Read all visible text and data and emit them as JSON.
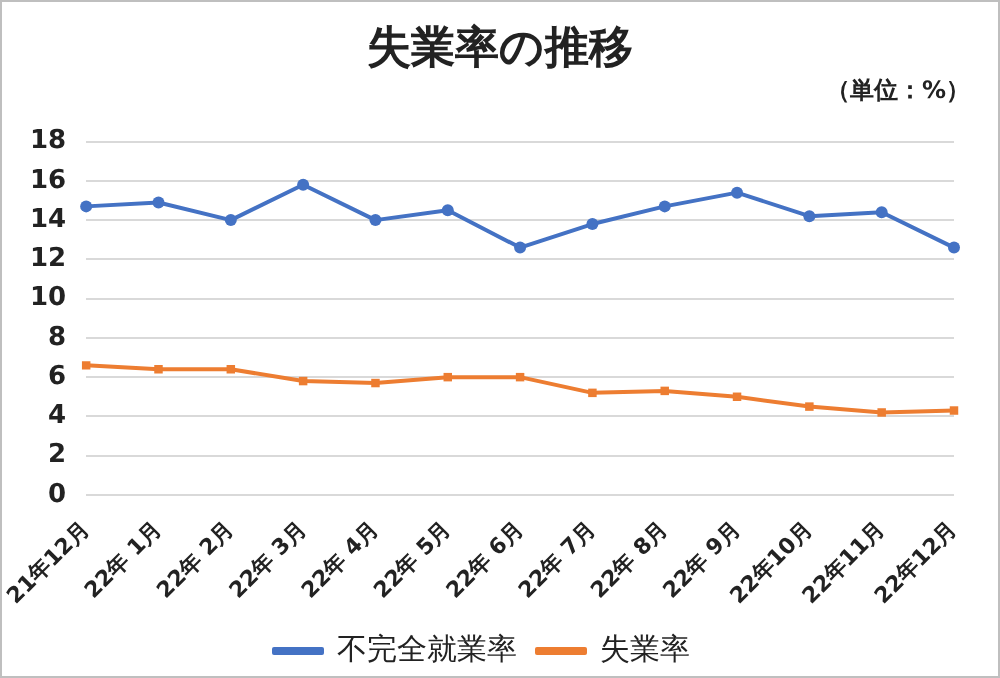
{
  "chart_data": {
    "type": "line",
    "title": "失業率の推移",
    "annotations": [
      "（単位：%）"
    ],
    "categories": [
      "21年12月",
      "22年 1月",
      "22年 2月",
      "22年 3月",
      "22年 4月",
      "22年 5月",
      "22年 6月",
      "22年 7月",
      "22年 8月",
      "22年 9月",
      "22年10月",
      "22年11月",
      "22年12月"
    ],
    "series": [
      {
        "name": "不完全就業率",
        "color": "#4472c4",
        "marker": "circle",
        "values": [
          14.7,
          14.9,
          14.0,
          15.8,
          14.0,
          14.5,
          12.6,
          13.8,
          14.7,
          15.4,
          14.2,
          14.4,
          12.6
        ]
      },
      {
        "name": "失業率",
        "color": "#ed7d31",
        "marker": "square",
        "values": [
          6.6,
          6.4,
          6.4,
          5.8,
          5.7,
          6.0,
          6.0,
          5.2,
          5.3,
          5.0,
          4.5,
          4.2,
          4.3
        ]
      }
    ],
    "ylim": [
      0,
      18
    ],
    "yticks": [
      0,
      2,
      4,
      6,
      8,
      10,
      12,
      14,
      16,
      18
    ],
    "grid": "y",
    "legend": "bottom",
    "line_style": "solid"
  }
}
